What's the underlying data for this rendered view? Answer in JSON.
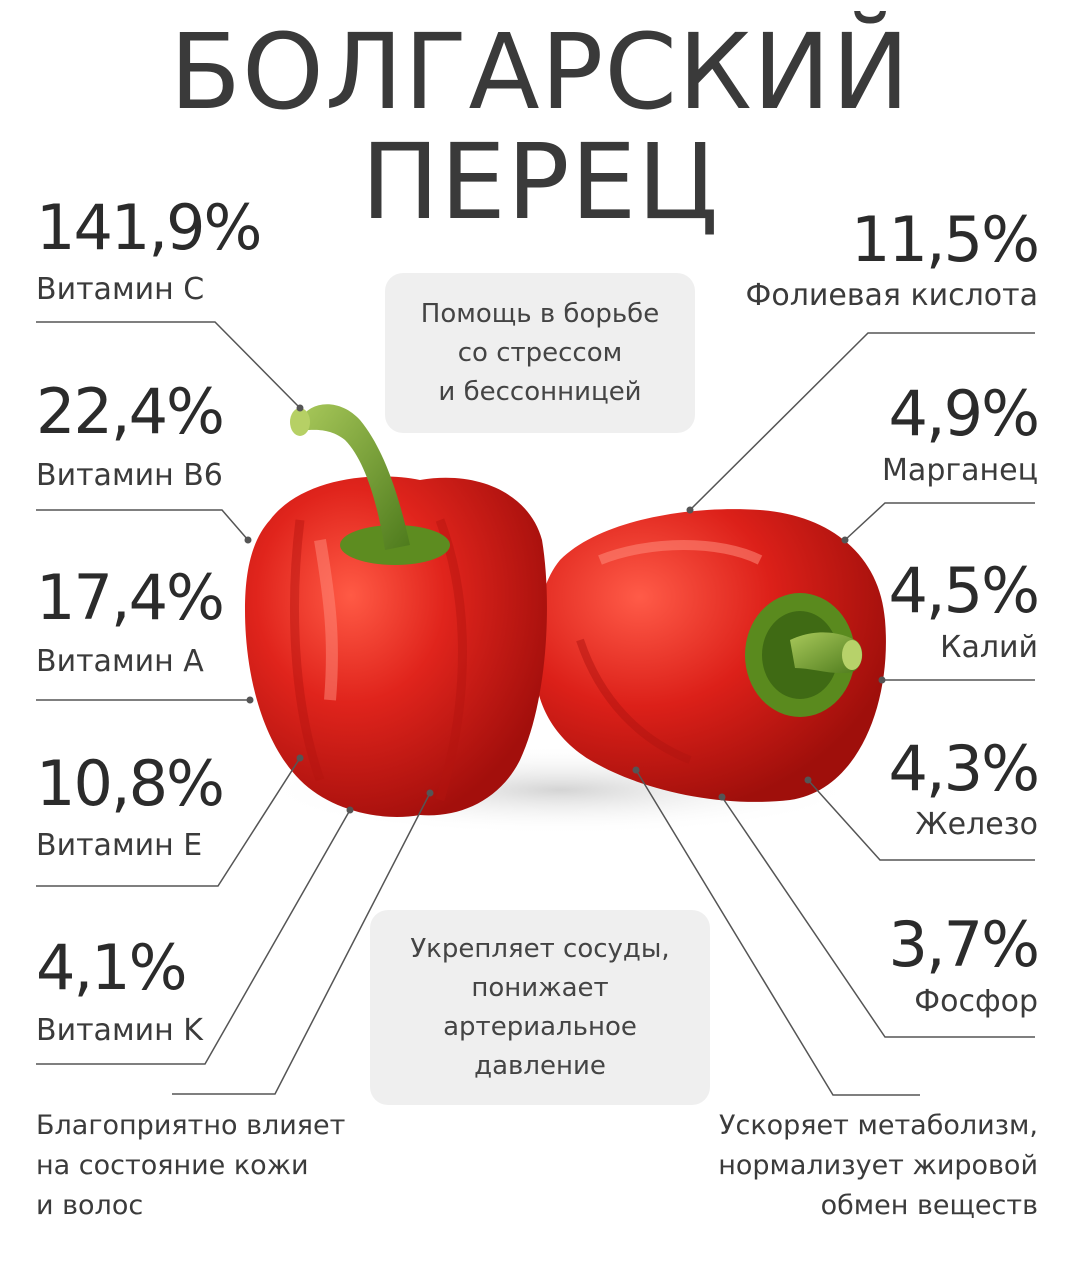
{
  "title": {
    "line1": "БОЛГАРСКИЙ",
    "line2": "ПЕРЕЦ"
  },
  "left_items": [
    {
      "percent": "141,9%",
      "label": "Витамин C"
    },
    {
      "percent": "22,4%",
      "label": "Витамин B6"
    },
    {
      "percent": "17,4%",
      "label": "Витамин A"
    },
    {
      "percent": "10,8%",
      "label": "Витамин E"
    },
    {
      "percent": "4,1%",
      "label": "Витамин K"
    }
  ],
  "right_items": [
    {
      "percent": "11,5%",
      "label": "Фолиевая кислота"
    },
    {
      "percent": "4,9%",
      "label": "Марганец"
    },
    {
      "percent": "4,5%",
      "label": "Калий"
    },
    {
      "percent": "4,3%",
      "label": "Железо"
    },
    {
      "percent": "3,7%",
      "label": "Фосфор"
    }
  ],
  "callouts": {
    "stress": [
      "Помощь в борьбе",
      "со стрессом",
      "и бессонницей"
    ],
    "vessels": [
      "Укрепляет сосуды,",
      "понижает",
      "артериальное",
      "давление"
    ],
    "skin": [
      "Благоприятно влияет",
      "на состояние кожи",
      "и волос"
    ],
    "metabolism": [
      "Ускоряет метаболизм,",
      "нормализует жировой",
      "обмен веществ"
    ]
  },
  "colors": {
    "pepper_red": "#d8201a",
    "stem_green": "#6f9a2a",
    "line": "#555555",
    "box_bg": "#efefef"
  }
}
